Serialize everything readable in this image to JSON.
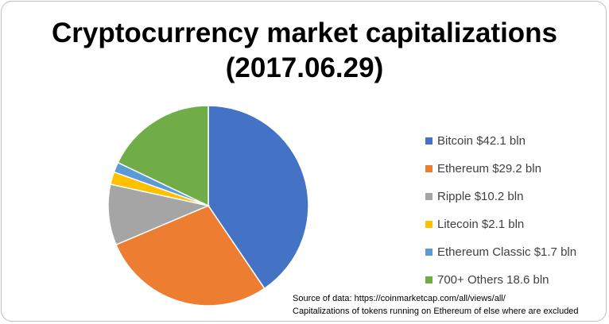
{
  "chart_data": {
    "type": "pie",
    "title_lines": [
      "Cryptocurrency market capitalizations",
      "(2017.06.29)"
    ],
    "categories": [
      "Bitcoin",
      "Ethereum",
      "Ripple",
      "Litecoin",
      "Ethereum Classic",
      "700+ Others"
    ],
    "values": [
      42.1,
      29.2,
      10.2,
      2.1,
      1.7,
      18.6
    ],
    "unit": "bln",
    "legend_labels": [
      "Bitcoin $42.1 bln",
      "Ethereum $29.2 bln",
      "Ripple $10.2 bln",
      "Litecoin $2.1 bln",
      "Ethereum Classic $1.7 bln",
      "700+ Others 18.6 bln"
    ],
    "colors": [
      "#4472c4",
      "#ed7d31",
      "#a5a5a5",
      "#ffc000",
      "#5b9bd5",
      "#70ad47"
    ],
    "legend_position": "right",
    "source_lines": [
      "Source of data: https://coinmarketcap.com/all/views/all/",
      "Capitalizations of tokens running on Ethereum of else where are excluded"
    ]
  }
}
